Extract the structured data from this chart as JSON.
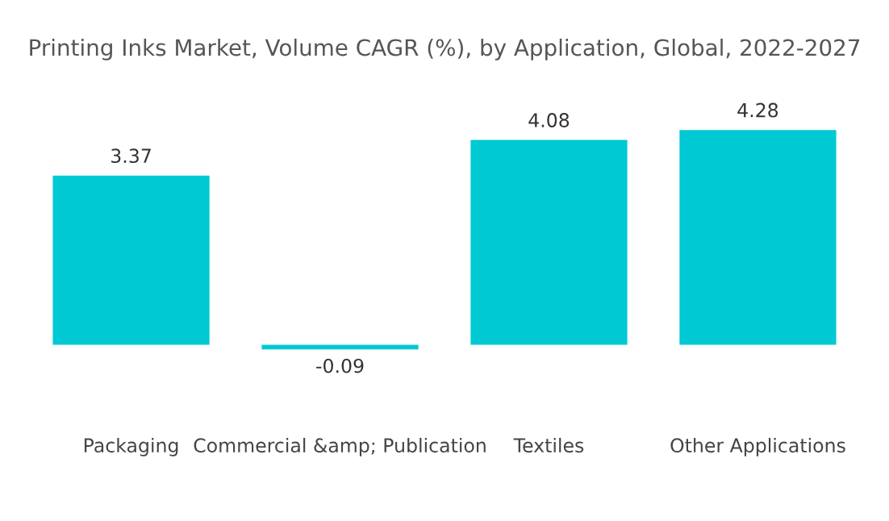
{
  "chart_data": {
    "type": "bar",
    "title": "Printing Inks Market, Volume CAGR (%), by Application, Global, 2022-2027",
    "categories": [
      "Packaging",
      "Commercial &amp; Publication",
      "Textiles",
      "Other Applications"
    ],
    "values": [
      3.37,
      -0.09,
      4.08,
      4.28
    ],
    "color": "#00c9d4",
    "data_labels": true,
    "grid": false
  }
}
